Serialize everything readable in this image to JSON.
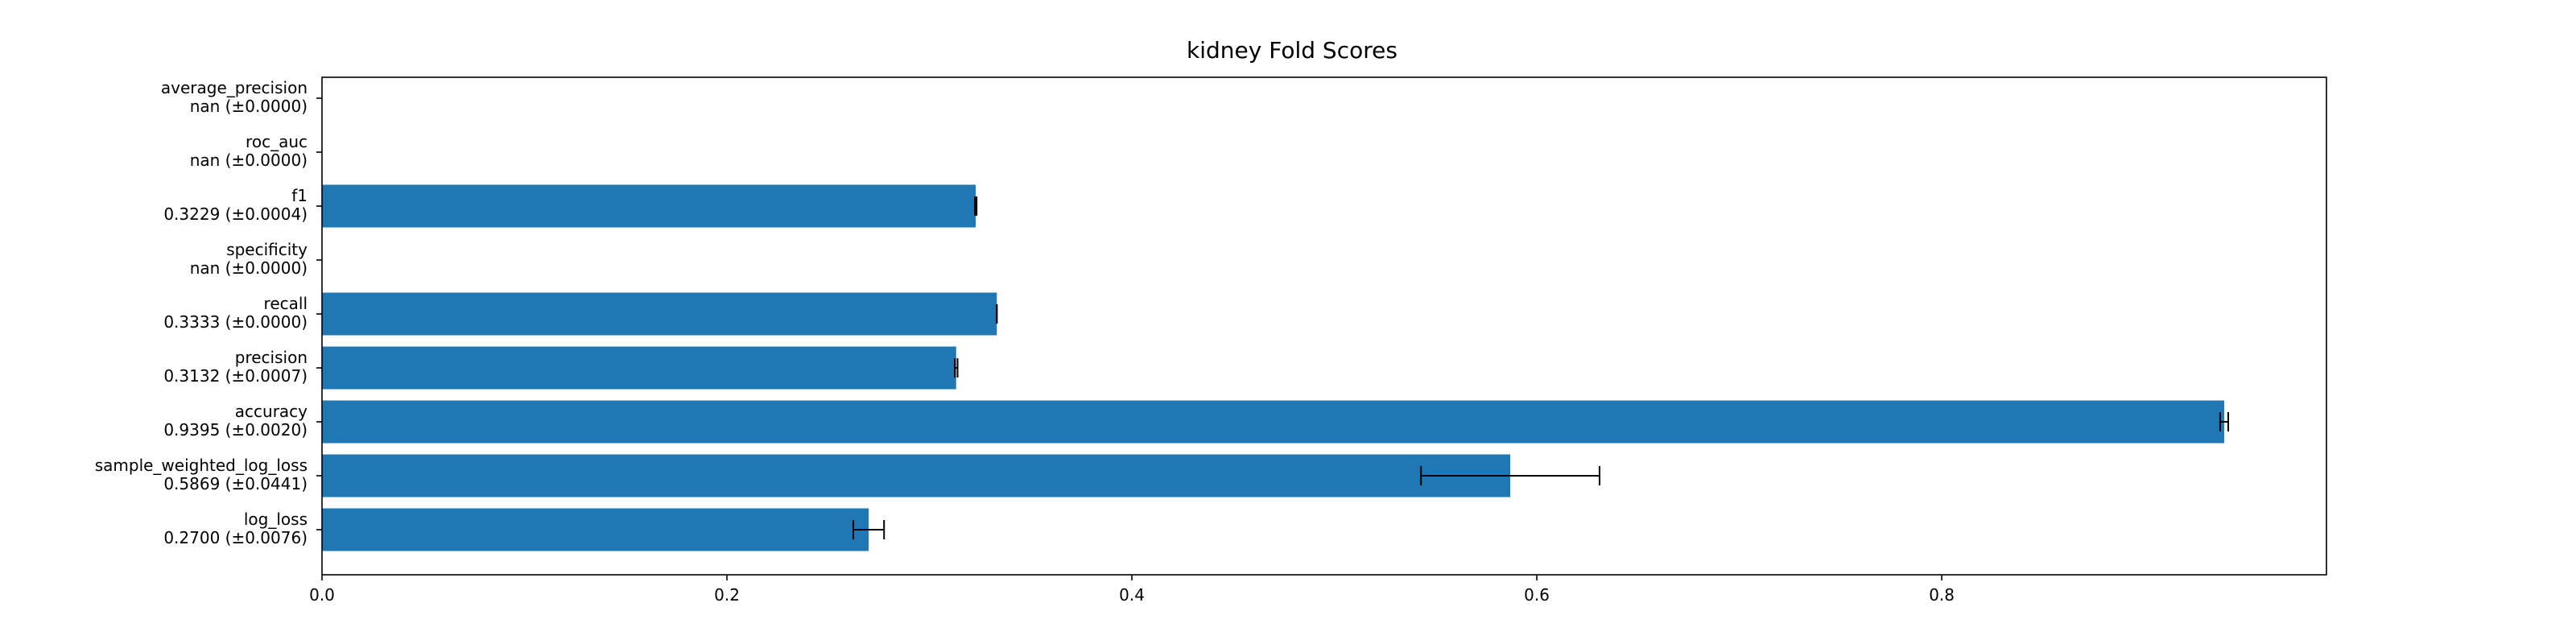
{
  "chart_data": {
    "type": "bar",
    "orientation": "horizontal",
    "title": "kidney Fold Scores",
    "xlabel": "",
    "ylabel": "",
    "xlim": [
      0,
      0.99
    ],
    "x_ticks": [
      "0.0",
      "0.2",
      "0.4",
      "0.6",
      "0.8"
    ],
    "x_tick_values": [
      0.0,
      0.2,
      0.4,
      0.6,
      0.8
    ],
    "grid": false,
    "bar_color": "#1f77b4",
    "errorbar_color": "#000000",
    "categories": [
      "log_loss",
      "sample_weighted_log_loss",
      "accuracy",
      "precision",
      "recall",
      "specificity",
      "f1",
      "roc_auc",
      "average_precision"
    ],
    "score_labels": [
      "0.2700 (±0.0076)",
      "0.5869 (±0.0441)",
      "0.9395 (±0.0020)",
      "0.3132 (±0.0007)",
      "0.3333 (±0.0000)",
      "nan (±0.0000)",
      "0.3229 (±0.0004)",
      "nan (±0.0000)",
      "nan (±0.0000)"
    ],
    "values": [
      0.27,
      0.5869,
      0.9395,
      0.3132,
      0.3333,
      null,
      0.3229,
      null,
      null
    ],
    "errors": [
      0.0076,
      0.0441,
      0.002,
      0.0007,
      0.0,
      0.0,
      0.0004,
      0.0,
      0.0
    ]
  }
}
